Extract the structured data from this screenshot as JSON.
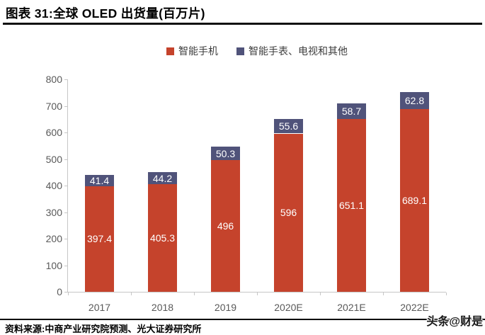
{
  "header": {
    "title": "图表 31:全球 OLED 出货量(百万片)"
  },
  "legend": [
    {
      "label": "智能手机",
      "color": "#c5432c"
    },
    {
      "label": "智能手表、电视和其他",
      "color": "#50537a"
    }
  ],
  "footer": {
    "source": "资料来源:中商产业研究院预测、光大证券研究所",
    "watermark": "头条@财是"
  },
  "chart_data": {
    "type": "bar",
    "stacked": true,
    "title": "全球 OLED 出货量(百万片)",
    "categories": [
      "2017",
      "2018",
      "2019",
      "2020E",
      "2021E",
      "2022E"
    ],
    "series": [
      {
        "name": "智能手机",
        "color": "#c5432c",
        "values": [
          397.4,
          405.3,
          496,
          596,
          651.1,
          689.1
        ]
      },
      {
        "name": "智能手表、电视和其他",
        "color": "#50537a",
        "values": [
          41.4,
          44.2,
          50.3,
          55.6,
          58.7,
          62.8
        ]
      }
    ],
    "data_labels": {
      "智能手机": [
        "397.4",
        "405.3",
        "496",
        "596",
        "651.1",
        "689.1"
      ],
      "智能手表、电视和其他": [
        "41.4",
        "44.2",
        "50.3",
        "55.6",
        "58.7",
        "62.8"
      ]
    },
    "ylim": [
      0,
      800
    ],
    "ytick_step": 100,
    "ytick_labels": [
      "0",
      "100",
      "200",
      "300",
      "400",
      "500",
      "600",
      "700",
      "800"
    ],
    "grid": false,
    "legend_position": "top"
  }
}
